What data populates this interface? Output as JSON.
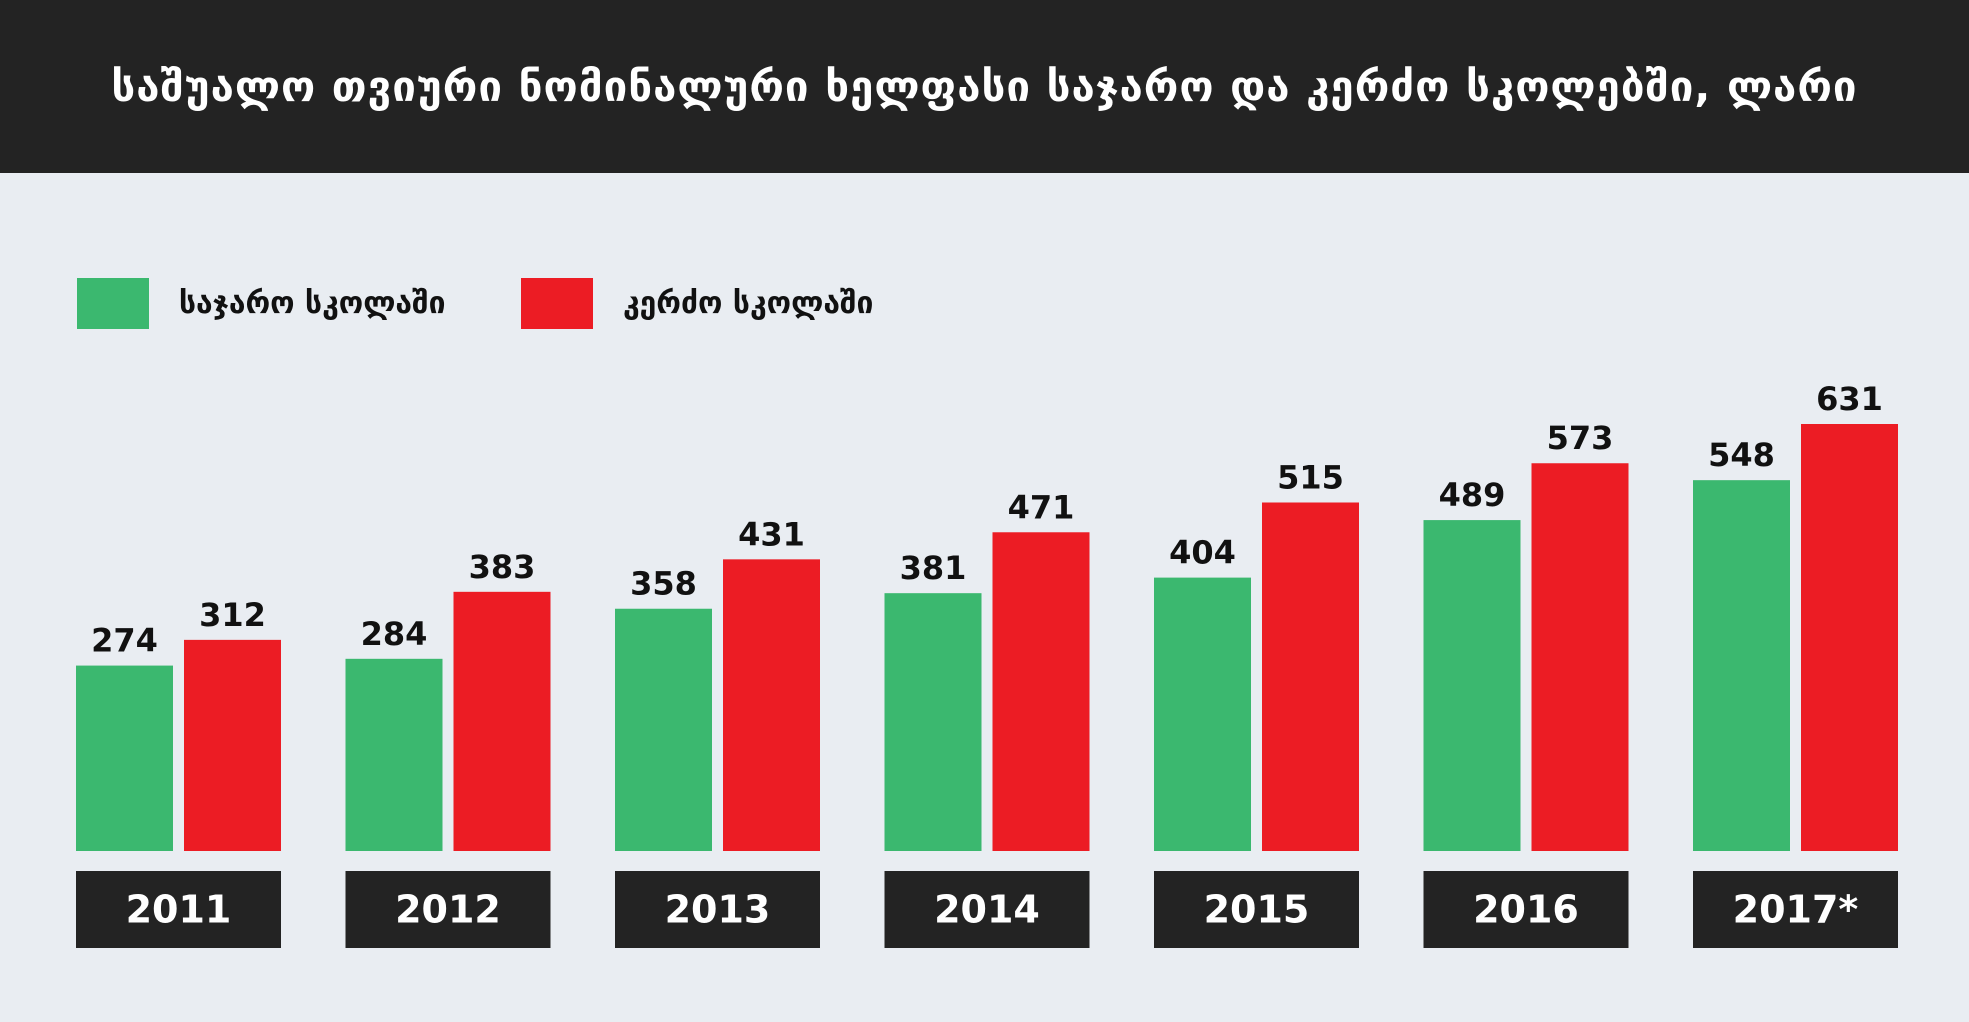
{
  "colors": {
    "background": "#e9edf2",
    "title_bar": "#232323",
    "title_text": "#ffffff",
    "public": "#3bb86f",
    "private": "#ec1c24",
    "year_box": "#232323",
    "year_text": "#ffffff",
    "value_text": "#111111"
  },
  "chart_data": {
    "type": "bar",
    "title": "საშუალო თვიური ნომინალური ხელფასი საჯარო და კერძო სკოლებში, ლარი",
    "xlabel": "",
    "ylabel": "",
    "categories": [
      "2011",
      "2012",
      "2013",
      "2014",
      "2015",
      "2016",
      "2017*"
    ],
    "series": [
      {
        "name": "საჯარო სკოლაში",
        "values": [
          274,
          284,
          358,
          381,
          404,
          489,
          548
        ],
        "color": "#3bb86f"
      },
      {
        "name": "კერძო სკოლაში",
        "values": [
          312,
          383,
          431,
          471,
          515,
          573,
          631
        ],
        "color": "#ec1c24"
      }
    ],
    "ylim": [
      0,
      631
    ],
    "grid": false,
    "legend_position": "top-left",
    "data_labels": true
  }
}
